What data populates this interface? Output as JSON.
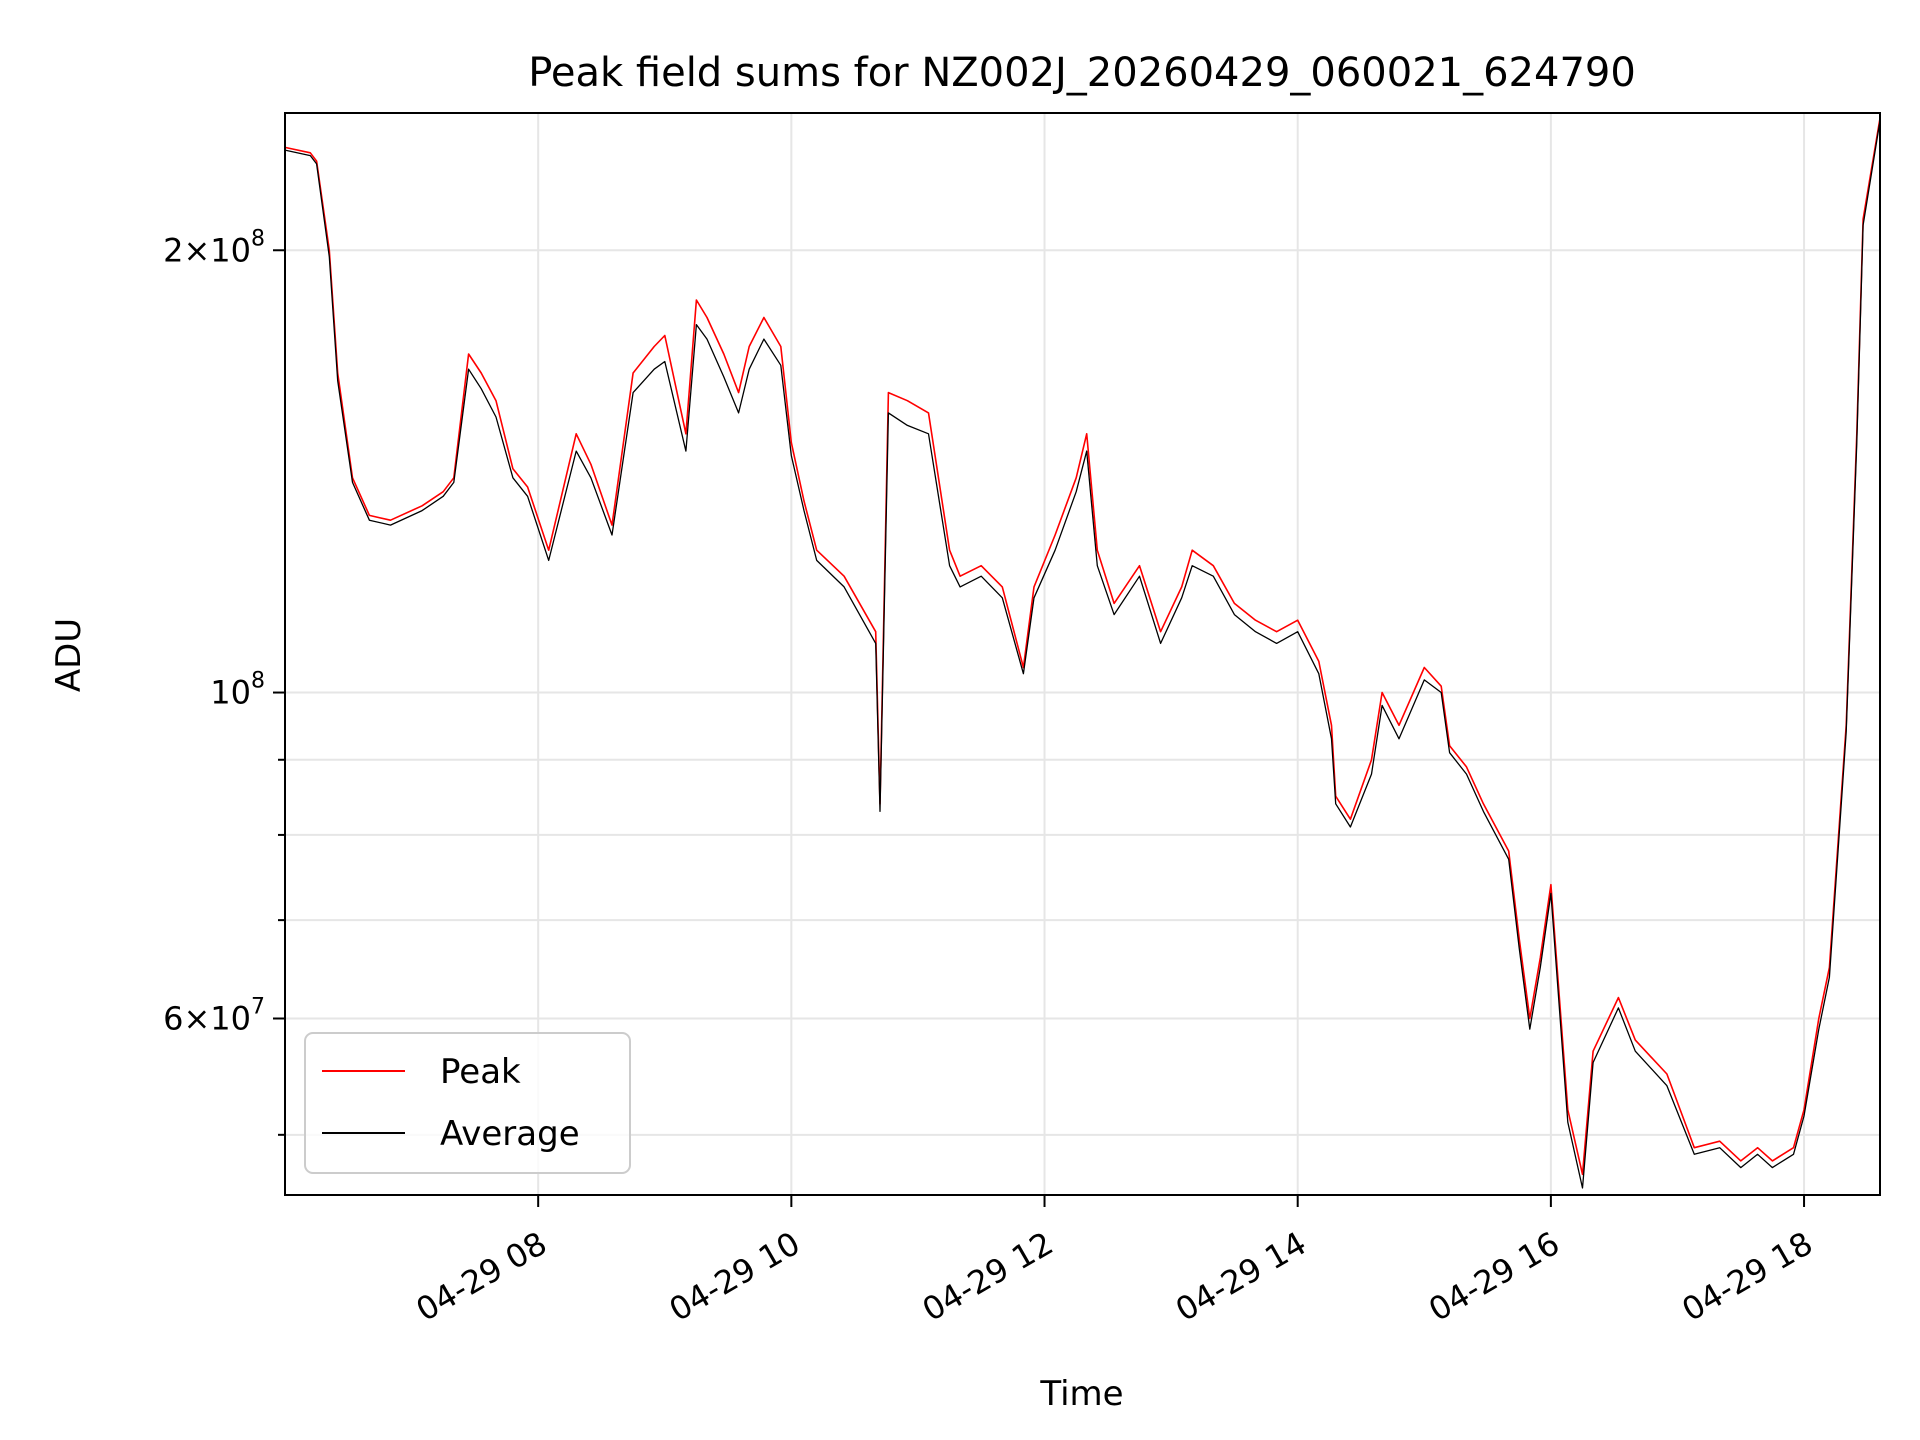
{
  "chart_data": {
    "type": "line",
    "title": "Peak field sums for NZ002J_20260429_060021_624790",
    "xlabel": "Time",
    "ylabel": "ADU",
    "yscale": "log",
    "grid": true,
    "legend_position": "lower-left",
    "xlim": [
      "2026-04-29 06:00",
      "2026-04-29 18:36"
    ],
    "ylim": [
      45500000,
      248000000
    ],
    "x_ticks": [
      {
        "value": "2026-04-29 08:00",
        "label": "04-29 08"
      },
      {
        "value": "2026-04-29 10:00",
        "label": "04-29 10"
      },
      {
        "value": "2026-04-29 12:00",
        "label": "04-29 12"
      },
      {
        "value": "2026-04-29 14:00",
        "label": "04-29 14"
      },
      {
        "value": "2026-04-29 16:00",
        "label": "04-29 16"
      },
      {
        "value": "2026-04-29 18:00",
        "label": "04-29 18"
      }
    ],
    "y_ticks_major": [
      {
        "value": 60000000,
        "base": "6",
        "exp": "7"
      },
      {
        "value": 100000000,
        "base": "",
        "exp": "8"
      },
      {
        "value": 200000000,
        "base": "2",
        "exp": "8"
      }
    ],
    "y_ticks_minor": [
      50000000,
      70000000,
      80000000,
      90000000
    ],
    "series_colors": {
      "Peak": "#ff0000",
      "Average": "#000000"
    },
    "x": [
      "06:00",
      "06:12",
      "06:15",
      "06:21",
      "06:25",
      "06:32",
      "06:40",
      "06:50",
      "07:05",
      "07:15",
      "07:20",
      "07:27",
      "07:33",
      "07:40",
      "07:48",
      "07:55",
      "08:05",
      "08:18",
      "08:25",
      "08:35",
      "08:45",
      "08:55",
      "09:00",
      "09:10",
      "09:15",
      "09:20",
      "09:28",
      "09:35",
      "09:40",
      "09:47",
      "09:55",
      "10:00",
      "10:06",
      "10:12",
      "10:25",
      "10:40",
      "10:42",
      "10:46",
      "10:55",
      "11:05",
      "11:15",
      "11:20",
      "11:30",
      "11:40",
      "11:50",
      "11:55",
      "12:05",
      "12:15",
      "12:20",
      "12:25",
      "12:33",
      "12:45",
      "12:55",
      "13:05",
      "13:10",
      "13:20",
      "13:30",
      "13:40",
      "13:50",
      "14:00",
      "14:10",
      "14:16",
      "14:18",
      "14:25",
      "14:35",
      "14:40",
      "14:48",
      "15:00",
      "15:08",
      "15:12",
      "15:20",
      "15:28",
      "15:40",
      "15:45",
      "15:50",
      "15:55",
      "16:00",
      "16:08",
      "16:15",
      "16:20",
      "16:32",
      "16:40",
      "16:55",
      "17:08",
      "17:20",
      "17:30",
      "17:38",
      "17:45",
      "17:50",
      "17:55",
      "18:00",
      "18:07",
      "18:12",
      "18:20",
      "18:25",
      "18:28",
      "18:36"
    ],
    "series": [
      {
        "name": "Peak",
        "values": [
          235000000,
          233000000,
          230000000,
          200000000,
          165000000,
          140000000,
          132000000,
          131000000,
          134000000,
          137000000,
          140000000,
          170000000,
          165000000,
          158000000,
          142000000,
          138000000,
          125000000,
          150000000,
          143000000,
          130000000,
          165000000,
          172000000,
          175000000,
          150000000,
          185000000,
          180000000,
          170000000,
          160000000,
          172000000,
          180000000,
          172000000,
          148000000,
          135000000,
          125000000,
          120000000,
          110000000,
          84000000,
          160000000,
          158000000,
          155000000,
          125000000,
          120000000,
          122000000,
          118000000,
          104000000,
          118000000,
          128000000,
          140000000,
          150000000,
          125000000,
          115000000,
          122000000,
          110000000,
          118000000,
          125000000,
          122000000,
          115000000,
          112000000,
          110000000,
          112000000,
          105000000,
          95000000,
          85000000,
          82000000,
          90000000,
          100000000,
          95000000,
          104000000,
          101000000,
          92000000,
          89000000,
          84000000,
          78000000,
          68000000,
          60000000,
          66000000,
          74000000,
          52000000,
          47000000,
          57000000,
          62000000,
          58000000,
          55000000,
          49000000,
          49500000,
          48000000,
          49000000,
          48000000,
          48500000,
          49000000,
          52000000,
          60000000,
          65000000,
          95000000,
          150000000,
          210000000,
          246000000
        ]
      },
      {
        "name": "Average",
        "values": [
          234000000,
          232000000,
          229000000,
          198000000,
          163000000,
          139000000,
          131000000,
          130000000,
          133000000,
          136000000,
          139000000,
          166000000,
          161000000,
          154000000,
          140000000,
          136000000,
          123000000,
          146000000,
          140000000,
          128000000,
          160000000,
          166000000,
          168000000,
          146000000,
          178000000,
          174000000,
          164000000,
          155000000,
          166000000,
          174000000,
          167000000,
          145000000,
          133000000,
          123000000,
          118000000,
          108000000,
          83000000,
          155000000,
          152000000,
          150000000,
          122000000,
          118000000,
          120000000,
          116000000,
          103000000,
          116000000,
          125000000,
          137000000,
          146000000,
          122000000,
          113000000,
          120000000,
          108000000,
          116000000,
          122000000,
          120000000,
          113000000,
          110000000,
          108000000,
          110000000,
          103000000,
          93000000,
          84000000,
          81000000,
          88000000,
          98000000,
          93000000,
          102000000,
          100000000,
          91000000,
          88000000,
          83000000,
          77000000,
          67000000,
          59000000,
          65000000,
          73000000,
          51000000,
          46000000,
          56000000,
          61000000,
          57000000,
          54000000,
          48500000,
          49000000,
          47500000,
          48500000,
          47500000,
          48000000,
          48500000,
          51500000,
          59000000,
          64000000,
          94000000,
          148000000,
          208000000,
          245000000
        ]
      }
    ]
  }
}
